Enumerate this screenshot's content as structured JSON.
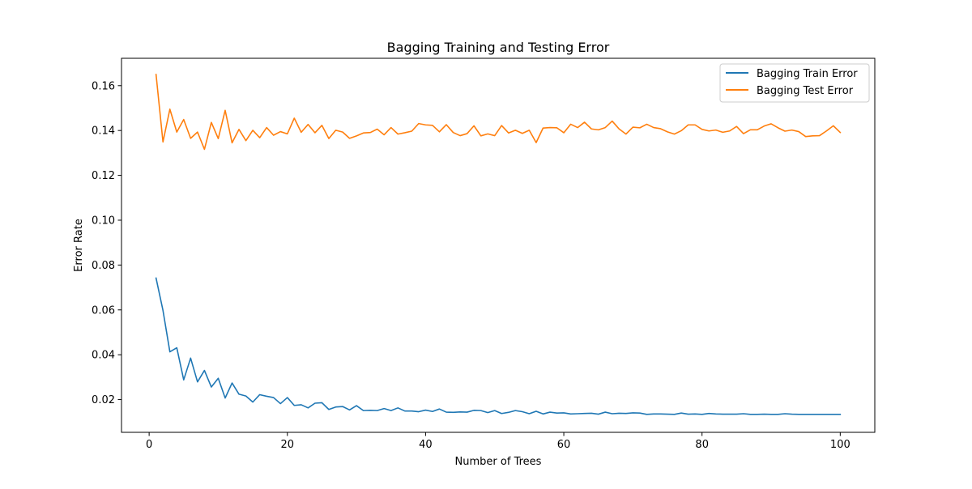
{
  "chart_data": {
    "type": "line",
    "title": "Bagging Training and Testing Error",
    "xlabel": "Number of Trees",
    "ylabel": "Error Rate",
    "xlim": [
      -4,
      105
    ],
    "ylim": [
      0.0054,
      0.1722
    ],
    "xticks": [
      0,
      20,
      40,
      60,
      80,
      100
    ],
    "yticks": [
      0.02,
      0.04,
      0.06,
      0.08,
      0.1,
      0.12,
      0.14,
      0.16
    ],
    "xtick_labels": [
      "0",
      "20",
      "40",
      "60",
      "80",
      "100"
    ],
    "ytick_labels": [
      "0.02",
      "0.04",
      "0.06",
      "0.08",
      "0.10",
      "0.12",
      "0.14",
      "0.16"
    ],
    "grid": false,
    "legend_position": "top-right",
    "series": [
      {
        "name": "Bagging Train Error",
        "color": "#1f77b4",
        "x": [
          1,
          2,
          3,
          4,
          5,
          6,
          7,
          8,
          9,
          10,
          11,
          12,
          13,
          14,
          15,
          16,
          17,
          18,
          19,
          20,
          21,
          22,
          23,
          24,
          25,
          26,
          27,
          28,
          29,
          30,
          31,
          32,
          33,
          34,
          35,
          36,
          37,
          38,
          39,
          40,
          41,
          42,
          43,
          44,
          45,
          46,
          47,
          48,
          49,
          50,
          51,
          52,
          53,
          54,
          55,
          56,
          57,
          58,
          59,
          60,
          61,
          62,
          63,
          64,
          65,
          66,
          67,
          68,
          69,
          70,
          71,
          72,
          73,
          74,
          75,
          76,
          77,
          78,
          79,
          80,
          81,
          82,
          83,
          84,
          85,
          86,
          87,
          88,
          89,
          90,
          91,
          92,
          93,
          94,
          95,
          96,
          97,
          98,
          99,
          100
        ],
        "values": [
          0.0742,
          0.0598,
          0.0413,
          0.0431,
          0.0288,
          0.0385,
          0.0279,
          0.033,
          0.0256,
          0.0295,
          0.0207,
          0.0274,
          0.0224,
          0.0216,
          0.0189,
          0.0222,
          0.0215,
          0.0209,
          0.0182,
          0.0209,
          0.0174,
          0.0177,
          0.0163,
          0.0184,
          0.0186,
          0.0156,
          0.0167,
          0.0169,
          0.0154,
          0.0173,
          0.0151,
          0.0152,
          0.0151,
          0.016,
          0.0151,
          0.0163,
          0.0149,
          0.0149,
          0.0146,
          0.0153,
          0.0147,
          0.0158,
          0.0144,
          0.0143,
          0.0145,
          0.0144,
          0.0152,
          0.0151,
          0.0142,
          0.0151,
          0.0138,
          0.0143,
          0.0151,
          0.0146,
          0.0137,
          0.0148,
          0.0136,
          0.0144,
          0.014,
          0.0141,
          0.0136,
          0.0137,
          0.0138,
          0.0139,
          0.0135,
          0.0144,
          0.0137,
          0.0139,
          0.0138,
          0.0141,
          0.014,
          0.0134,
          0.0136,
          0.0136,
          0.0135,
          0.0134,
          0.014,
          0.0135,
          0.0136,
          0.0134,
          0.0138,
          0.0136,
          0.0135,
          0.0135,
          0.0135,
          0.0137,
          0.0134,
          0.0134,
          0.0135,
          0.0134,
          0.0134,
          0.0137,
          0.0135,
          0.0134,
          0.0134,
          0.0134,
          0.0134,
          0.0134,
          0.0134,
          0.0134
        ]
      },
      {
        "name": "Bagging Test Error",
        "color": "#ff7f0e",
        "x": [
          1,
          2,
          3,
          4,
          5,
          6,
          7,
          8,
          9,
          10,
          11,
          12,
          13,
          14,
          15,
          16,
          17,
          18,
          19,
          20,
          21,
          22,
          23,
          24,
          25,
          26,
          27,
          28,
          29,
          30,
          31,
          32,
          33,
          34,
          35,
          36,
          37,
          38,
          39,
          40,
          41,
          42,
          43,
          44,
          45,
          46,
          47,
          48,
          49,
          50,
          51,
          52,
          53,
          54,
          55,
          56,
          57,
          58,
          59,
          60,
          61,
          62,
          63,
          64,
          65,
          66,
          67,
          68,
          69,
          70,
          71,
          72,
          73,
          74,
          75,
          76,
          77,
          78,
          79,
          80,
          81,
          82,
          83,
          84,
          85,
          86,
          87,
          88,
          89,
          90,
          91,
          92,
          93,
          94,
          95,
          96,
          97,
          98,
          99,
          100
        ],
        "values": [
          0.165,
          0.1349,
          0.1495,
          0.1393,
          0.1449,
          0.1365,
          0.1393,
          0.1316,
          0.1436,
          0.1364,
          0.149,
          0.1345,
          0.1405,
          0.1355,
          0.1401,
          0.1368,
          0.1413,
          0.1379,
          0.1395,
          0.1385,
          0.1455,
          0.1392,
          0.1427,
          0.139,
          0.1423,
          0.1364,
          0.1401,
          0.1393,
          0.1365,
          0.1376,
          0.1389,
          0.1391,
          0.1406,
          0.1381,
          0.1413,
          0.1384,
          0.139,
          0.1397,
          0.1431,
          0.1425,
          0.1423,
          0.1394,
          0.1426,
          0.1391,
          0.1377,
          0.1386,
          0.1421,
          0.1376,
          0.1385,
          0.1377,
          0.1422,
          0.1389,
          0.1401,
          0.1387,
          0.1401,
          0.1346,
          0.1411,
          0.1413,
          0.1412,
          0.139,
          0.1428,
          0.1413,
          0.1437,
          0.1407,
          0.1403,
          0.1413,
          0.1442,
          0.1407,
          0.1384,
          0.1415,
          0.1412,
          0.1428,
          0.1413,
          0.1408,
          0.1394,
          0.1384,
          0.1399,
          0.1425,
          0.1425,
          0.1405,
          0.1398,
          0.1402,
          0.1392,
          0.1398,
          0.1418,
          0.1386,
          0.1403,
          0.1403,
          0.142,
          0.143,
          0.1412,
          0.1397,
          0.1402,
          0.1395,
          0.1373,
          0.1376,
          0.1377,
          0.1398,
          0.1421,
          0.1391
        ]
      }
    ]
  }
}
